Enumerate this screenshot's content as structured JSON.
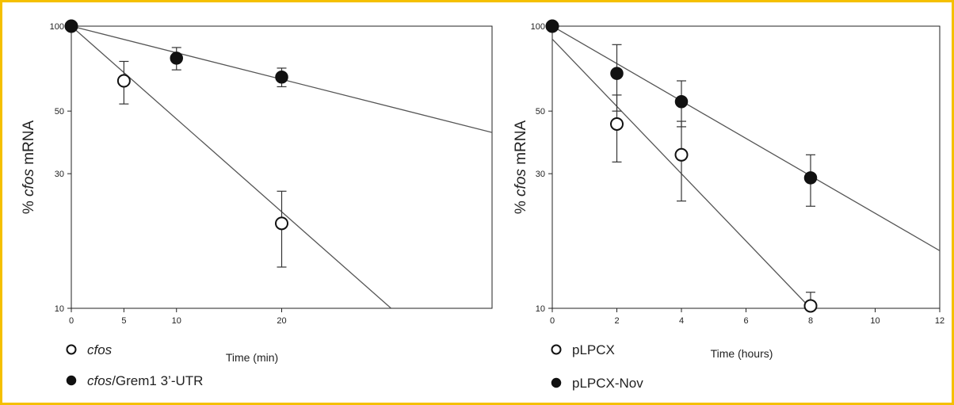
{
  "chart_data": [
    {
      "type": "scatter",
      "xlabel": "Time (min)",
      "ylabel_prefix": "% ",
      "ylabel_italic": "cfos",
      "ylabel_suffix": " mRNA",
      "yscale": "log",
      "xlim": [
        0,
        40
      ],
      "ylim": [
        10,
        100
      ],
      "xticks": [
        0,
        5,
        10,
        20
      ],
      "yticks": [
        10,
        30,
        50,
        100
      ],
      "legend_position": "bottom-left",
      "series": [
        {
          "legend_italic": "cfos",
          "legend_rest": "",
          "marker": "open",
          "x": [
            0,
            5,
            20
          ],
          "y": [
            100,
            64,
            20
          ],
          "err": [
            0,
            11,
            6
          ],
          "fit": {
            "x": [
              0,
              30.4
            ],
            "y": [
              100,
              10
            ]
          }
        },
        {
          "legend_italic": "cfos",
          "legend_rest": "/Grem1 3’-UTR",
          "marker": "filled",
          "x": [
            0,
            10,
            20
          ],
          "y": [
            100,
            77,
            66
          ],
          "err": [
            0,
            7,
            5
          ],
          "fit": {
            "x": [
              0,
              40
            ],
            "y": [
              100,
              42
            ]
          }
        }
      ]
    },
    {
      "type": "scatter",
      "xlabel": "Time (hours)",
      "ylabel_prefix": "% ",
      "ylabel_italic": "cfos",
      "ylabel_suffix": " mRNA",
      "yscale": "log",
      "xlim": [
        0,
        12
      ],
      "ylim": [
        10,
        100
      ],
      "xticks": [
        0,
        2,
        4,
        6,
        8,
        10,
        12
      ],
      "yticks": [
        10,
        30,
        50,
        100
      ],
      "legend_position": "bottom-left",
      "series": [
        {
          "legend_italic": "",
          "legend_rest": "pLPCX",
          "marker": "open",
          "x": [
            0,
            2,
            4,
            8
          ],
          "y": [
            100,
            45,
            35,
            10.2
          ],
          "err": [
            0,
            12,
            11,
            1.2
          ],
          "fit": {
            "x": [
              0,
              8
            ],
            "y": [
              90,
              10
            ]
          }
        },
        {
          "legend_italic": "",
          "legend_rest": "pLPCX-Nov",
          "marker": "filled",
          "x": [
            0,
            2,
            4,
            8
          ],
          "y": [
            100,
            68,
            54,
            29
          ],
          "err": [
            0,
            18,
            10,
            6
          ],
          "fit": {
            "x": [
              0,
              12
            ],
            "y": [
              100,
              16
            ]
          }
        }
      ]
    }
  ]
}
